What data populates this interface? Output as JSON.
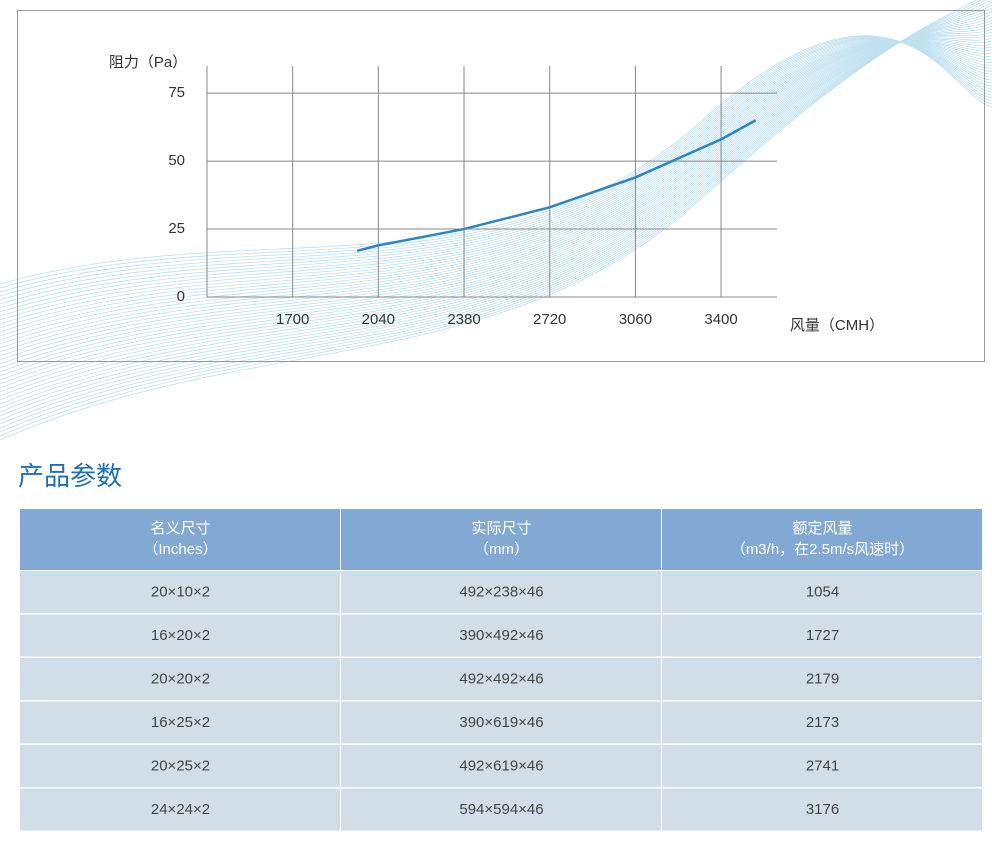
{
  "chart_data": {
    "type": "line",
    "x_label": "风量（CMH）",
    "y_label": "阻力（Pa）",
    "x": [
      1956,
      2040,
      2380,
      2720,
      3060,
      3400,
      3537
    ],
    "series": [
      {
        "color": "#2a85c4",
        "values": [
          17,
          19,
          25,
          33,
          44,
          58,
          65
        ]
      }
    ],
    "xlim": [
      1360,
      3622
    ],
    "xticks": [
      1700,
      2040,
      2380,
      2720,
      3060,
      3400
    ],
    "ylim": [
      0,
      85
    ],
    "yticks": [
      0,
      25,
      50,
      75
    ],
    "grid": true
  },
  "section_title": "产品参数",
  "table": {
    "header": [
      [
        "名义尺寸",
        "（Inches）"
      ],
      [
        "实际尺寸",
        "（mm）"
      ],
      [
        "额定风量",
        "（m3/h，在2.5m/s风速时）"
      ]
    ],
    "rows": [
      [
        "20×10×2",
        "492×238×46",
        "1054"
      ],
      [
        "16×20×2",
        "390×492×46",
        "1727"
      ],
      [
        "20×20×2",
        "492×492×46",
        "2179"
      ],
      [
        "16×25×2",
        "390×619×46",
        "2173"
      ],
      [
        "20×25×2",
        "492×619×46",
        "2741"
      ],
      [
        "24×24×2",
        "594×594×46",
        "3176"
      ]
    ]
  }
}
